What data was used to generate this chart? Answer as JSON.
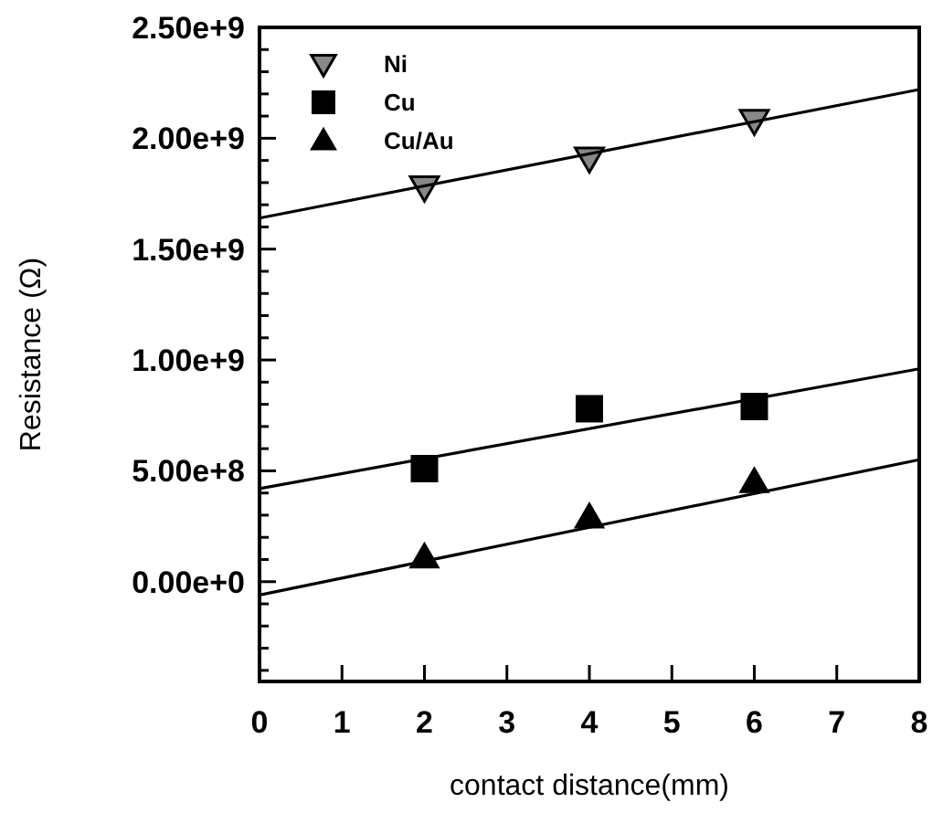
{
  "chart_data": {
    "type": "scatter",
    "xlabel": "contact distance(mm)",
    "ylabel": "Resistance (Ω)",
    "xlim": [
      0,
      8
    ],
    "xticks": [
      0,
      1,
      2,
      3,
      4,
      5,
      6,
      7,
      8
    ],
    "ylim": [
      -450000000,
      2500000000
    ],
    "yticks": [
      {
        "value": -400000000,
        "label": null
      },
      {
        "value": -300000000,
        "label": null
      },
      {
        "value": -200000000,
        "label": null
      },
      {
        "value": -100000000,
        "label": null
      },
      {
        "value": 0,
        "label": "0.00e+0"
      },
      {
        "value": 100000000,
        "label": null
      },
      {
        "value": 200000000,
        "label": null
      },
      {
        "value": 300000000,
        "label": null
      },
      {
        "value": 400000000,
        "label": null
      },
      {
        "value": 500000000,
        "label": "5.00e+8"
      },
      {
        "value": 600000000,
        "label": null
      },
      {
        "value": 700000000,
        "label": null
      },
      {
        "value": 800000000,
        "label": null
      },
      {
        "value": 900000000,
        "label": null
      },
      {
        "value": 1000000000,
        "label": "1.00e+9"
      },
      {
        "value": 1100000000,
        "label": null
      },
      {
        "value": 1200000000,
        "label": null
      },
      {
        "value": 1300000000,
        "label": null
      },
      {
        "value": 1400000000,
        "label": null
      },
      {
        "value": 1500000000,
        "label": "1.50e+9"
      },
      {
        "value": 1600000000,
        "label": null
      },
      {
        "value": 1700000000,
        "label": null
      },
      {
        "value": 1800000000,
        "label": null
      },
      {
        "value": 1900000000,
        "label": null
      },
      {
        "value": 2000000000,
        "label": "2.00e+9"
      },
      {
        "value": 2100000000,
        "label": null
      },
      {
        "value": 2200000000,
        "label": null
      },
      {
        "value": 2300000000,
        "label": null
      },
      {
        "value": 2400000000,
        "label": null
      },
      {
        "value": 2500000000,
        "label": "2.50e+9"
      }
    ],
    "legend": "top left",
    "grid": false,
    "series": [
      {
        "name": "Ni",
        "marker": "triangle-down",
        "color": "#888888",
        "x": [
          2,
          4,
          6
        ],
        "values": [
          1780000000,
          1910000000,
          2080000000
        ]
      },
      {
        "name": "Cu",
        "marker": "square",
        "color": "#000000",
        "x": [
          2,
          4,
          6
        ],
        "values": [
          510000000,
          780000000,
          790000000
        ]
      },
      {
        "name": "Cu/Au",
        "marker": "triangle",
        "color": "#000000",
        "x": [
          2,
          4,
          6
        ],
        "values": [
          110000000,
          290000000,
          450000000
        ]
      },
      {
        "type": "line",
        "color": "#000000",
        "x": [
          0,
          8
        ],
        "values": [
          1640000000,
          2220000000
        ]
      },
      {
        "type": "line",
        "color": "#000000",
        "x": [
          0,
          8
        ],
        "values": [
          420000000,
          960000000
        ]
      },
      {
        "type": "line",
        "color": "#000000",
        "x": [
          0,
          8
        ],
        "values": [
          -60000000,
          550000000
        ]
      }
    ]
  }
}
